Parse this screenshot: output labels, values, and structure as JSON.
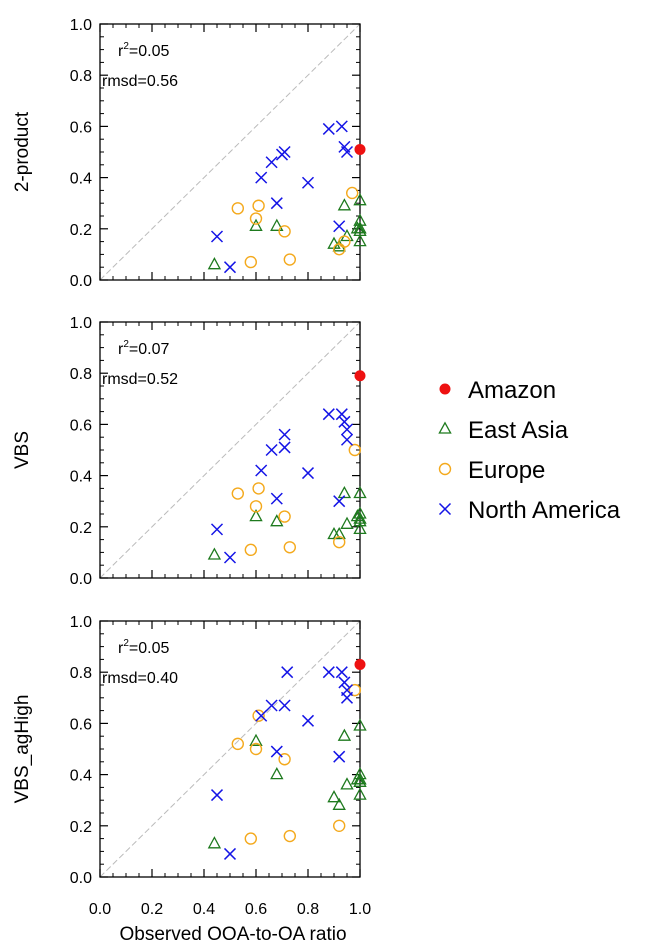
{
  "colors": {
    "Amazon": "#ee1111",
    "East Asia": "#1e7a1e",
    "Europe": "#f4a91c",
    "North America": "#1414e6",
    "one_to_one": "#bbbbbb"
  },
  "chart_data": [
    {
      "type": "scatter",
      "ylabel": "2-product",
      "xlabel": "",
      "xlim": [
        0,
        1
      ],
      "ylim": [
        0,
        1
      ],
      "xticks": [
        "0.0",
        "0.2",
        "0.4",
        "0.6",
        "0.8",
        "1.0"
      ],
      "yticks": [
        "0.0",
        "0.2",
        "0.4",
        "0.6",
        "0.8",
        "1.0"
      ],
      "one_to_one_line": true,
      "stats": {
        "r2": "0.05",
        "rmsd": "rmsd=0.56"
      },
      "series": [
        {
          "name": "Amazon",
          "marker": "dot",
          "points": [
            [
              1.0,
              0.51
            ]
          ]
        },
        {
          "name": "East Asia",
          "marker": "triangle",
          "points": [
            [
              0.44,
              0.06
            ],
            [
              0.6,
              0.21
            ],
            [
              0.68,
              0.21
            ],
            [
              0.9,
              0.14
            ],
            [
              0.92,
              0.13
            ],
            [
              0.94,
              0.29
            ],
            [
              0.95,
              0.17
            ],
            [
              0.99,
              0.2
            ],
            [
              1.0,
              0.31
            ],
            [
              1.0,
              0.23
            ],
            [
              1.0,
              0.2
            ],
            [
              1.0,
              0.19
            ],
            [
              1.0,
              0.15
            ]
          ]
        },
        {
          "name": "Europe",
          "marker": "circle",
          "points": [
            [
              0.53,
              0.28
            ],
            [
              0.58,
              0.07
            ],
            [
              0.6,
              0.24
            ],
            [
              0.61,
              0.29
            ],
            [
              0.71,
              0.19
            ],
            [
              0.73,
              0.08
            ],
            [
              0.92,
              0.12
            ],
            [
              0.94,
              0.15
            ],
            [
              0.97,
              0.34
            ]
          ]
        },
        {
          "name": "North America",
          "marker": "cross",
          "points": [
            [
              0.45,
              0.17
            ],
            [
              0.5,
              0.05
            ],
            [
              0.62,
              0.4
            ],
            [
              0.66,
              0.46
            ],
            [
              0.68,
              0.3
            ],
            [
              0.7,
              0.49
            ],
            [
              0.71,
              0.5
            ],
            [
              0.8,
              0.38
            ],
            [
              0.88,
              0.59
            ],
            [
              0.92,
              0.21
            ],
            [
              0.93,
              0.6
            ],
            [
              0.94,
              0.52
            ],
            [
              0.95,
              0.5
            ]
          ]
        }
      ]
    },
    {
      "type": "scatter",
      "ylabel": "VBS",
      "xlabel": "",
      "xlim": [
        0,
        1
      ],
      "ylim": [
        0,
        1
      ],
      "xticks": [
        "0.0",
        "0.2",
        "0.4",
        "0.6",
        "0.8",
        "1.0"
      ],
      "yticks": [
        "0.0",
        "0.2",
        "0.4",
        "0.6",
        "0.8",
        "1.0"
      ],
      "one_to_one_line": true,
      "stats": {
        "r2": "0.07",
        "rmsd": "rmsd=0.52"
      },
      "series": [
        {
          "name": "Amazon",
          "marker": "dot",
          "points": [
            [
              1.0,
              0.79
            ]
          ]
        },
        {
          "name": "East Asia",
          "marker": "triangle",
          "points": [
            [
              0.44,
              0.09
            ],
            [
              0.6,
              0.24
            ],
            [
              0.68,
              0.22
            ],
            [
              0.9,
              0.17
            ],
            [
              0.92,
              0.17
            ],
            [
              0.94,
              0.33
            ],
            [
              0.95,
              0.21
            ],
            [
              0.99,
              0.24
            ],
            [
              1.0,
              0.33
            ],
            [
              1.0,
              0.25
            ],
            [
              1.0,
              0.23
            ],
            [
              1.0,
              0.22
            ],
            [
              1.0,
              0.19
            ]
          ]
        },
        {
          "name": "Europe",
          "marker": "circle",
          "points": [
            [
              0.53,
              0.33
            ],
            [
              0.58,
              0.11
            ],
            [
              0.6,
              0.28
            ],
            [
              0.61,
              0.35
            ],
            [
              0.71,
              0.24
            ],
            [
              0.73,
              0.12
            ],
            [
              0.92,
              0.14
            ],
            [
              0.98,
              0.5
            ]
          ]
        },
        {
          "name": "North America",
          "marker": "cross",
          "points": [
            [
              0.45,
              0.19
            ],
            [
              0.5,
              0.08
            ],
            [
              0.62,
              0.42
            ],
            [
              0.66,
              0.5
            ],
            [
              0.68,
              0.31
            ],
            [
              0.71,
              0.51
            ],
            [
              0.71,
              0.56
            ],
            [
              0.8,
              0.41
            ],
            [
              0.88,
              0.64
            ],
            [
              0.92,
              0.3
            ],
            [
              0.93,
              0.64
            ],
            [
              0.94,
              0.61
            ],
            [
              0.95,
              0.58
            ],
            [
              0.95,
              0.54
            ]
          ]
        }
      ]
    },
    {
      "type": "scatter",
      "ylabel": "VBS_agHigh",
      "xlabel": "Observed OOA-to-OA ratio",
      "xlim": [
        0,
        1
      ],
      "ylim": [
        0,
        1
      ],
      "xticks": [
        "0.0",
        "0.2",
        "0.4",
        "0.6",
        "0.8",
        "1.0"
      ],
      "yticks": [
        "0.0",
        "0.2",
        "0.4",
        "0.6",
        "0.8",
        "1.0"
      ],
      "one_to_one_line": true,
      "stats": {
        "r2": "0.05",
        "rmsd": "rmsd=0.40"
      },
      "series": [
        {
          "name": "Amazon",
          "marker": "dot",
          "points": [
            [
              1.0,
              0.83
            ]
          ]
        },
        {
          "name": "East Asia",
          "marker": "triangle",
          "points": [
            [
              0.44,
              0.13
            ],
            [
              0.6,
              0.53
            ],
            [
              0.68,
              0.4
            ],
            [
              0.9,
              0.31
            ],
            [
              0.92,
              0.28
            ],
            [
              0.94,
              0.55
            ],
            [
              0.95,
              0.36
            ],
            [
              0.99,
              0.38
            ],
            [
              1.0,
              0.59
            ],
            [
              1.0,
              0.4
            ],
            [
              1.0,
              0.38
            ],
            [
              1.0,
              0.37
            ],
            [
              1.0,
              0.32
            ]
          ]
        },
        {
          "name": "Europe",
          "marker": "circle",
          "points": [
            [
              0.53,
              0.52
            ],
            [
              0.58,
              0.15
            ],
            [
              0.6,
              0.5
            ],
            [
              0.61,
              0.63
            ],
            [
              0.71,
              0.46
            ],
            [
              0.73,
              0.16
            ],
            [
              0.92,
              0.2
            ],
            [
              0.98,
              0.73
            ]
          ]
        },
        {
          "name": "North America",
          "marker": "cross",
          "points": [
            [
              0.45,
              0.32
            ],
            [
              0.5,
              0.09
            ],
            [
              0.62,
              0.63
            ],
            [
              0.66,
              0.67
            ],
            [
              0.68,
              0.49
            ],
            [
              0.71,
              0.67
            ],
            [
              0.72,
              0.8
            ],
            [
              0.8,
              0.61
            ],
            [
              0.88,
              0.8
            ],
            [
              0.92,
              0.47
            ],
            [
              0.93,
              0.8
            ],
            [
              0.94,
              0.76
            ],
            [
              0.95,
              0.73
            ],
            [
              0.95,
              0.7
            ]
          ]
        }
      ]
    }
  ],
  "legend": {
    "position": "right",
    "items": [
      {
        "label": "Amazon",
        "marker": "dot"
      },
      {
        "label": "East Asia",
        "marker": "triangle"
      },
      {
        "label": "Europe",
        "marker": "circle"
      },
      {
        "label": "North America",
        "marker": "cross"
      }
    ]
  }
}
